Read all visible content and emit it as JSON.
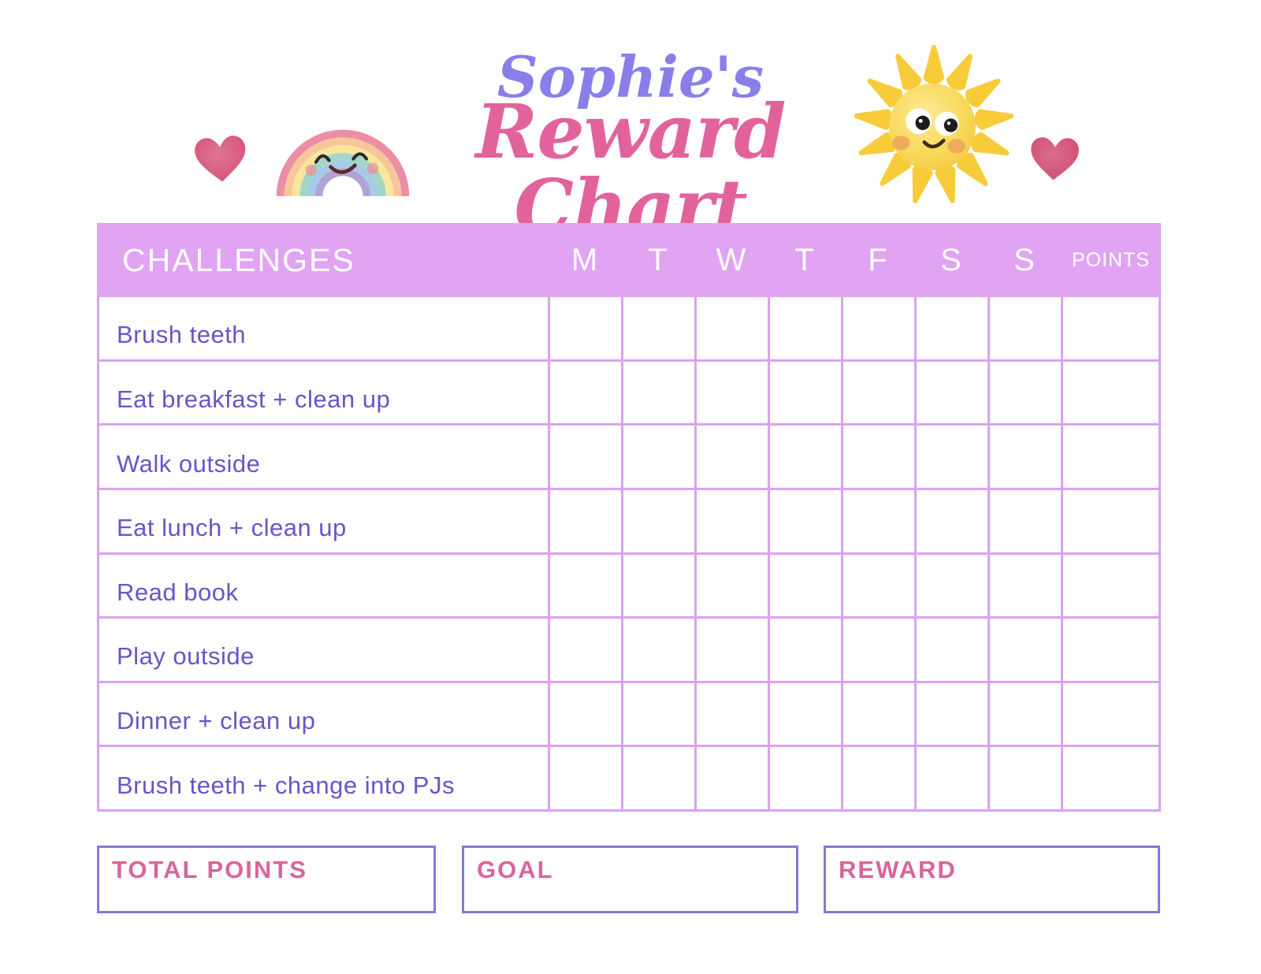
{
  "header": {
    "title_name": "Sophie's",
    "title_main": "Reward Chart",
    "icons": [
      "heart-icon",
      "rainbow-icon",
      "sun-icon",
      "heart-icon"
    ]
  },
  "table": {
    "challenges_label": "CHALLENGES",
    "day_labels": [
      "M",
      "T",
      "W",
      "T",
      "F",
      "S",
      "S"
    ],
    "points_label": "POINTS",
    "rows": [
      "Brush teeth",
      "Eat breakfast + clean up",
      "Walk outside",
      "Eat lunch + clean up",
      "Read book",
      "Play outside",
      "Dinner + clean up",
      "Brush teeth + change into PJs"
    ]
  },
  "footer": {
    "boxes": [
      {
        "label": "TOTAL POINTS"
      },
      {
        "label": "GOAL"
      },
      {
        "label": "REWARD"
      }
    ]
  },
  "colors": {
    "table_header_bg": "#e0a4f3",
    "grid_line": "#d9a3ee",
    "challenge_text": "#6457c9",
    "header_text": "#ffffff",
    "title_name_color": "#8a7ee9",
    "title_main_color": "#e2639c",
    "box_border": "#837ad3",
    "box_label": "#d8659c",
    "heart_pink": "#d5517c",
    "sun_yellow": "#f6cf45",
    "rainbow_bands": [
      "#ec8ea5",
      "#f7c69c",
      "#f8e79b",
      "#a3d6c6",
      "#a5cbe8",
      "#b2a3d6"
    ],
    "page_bg": "#ffffff"
  }
}
